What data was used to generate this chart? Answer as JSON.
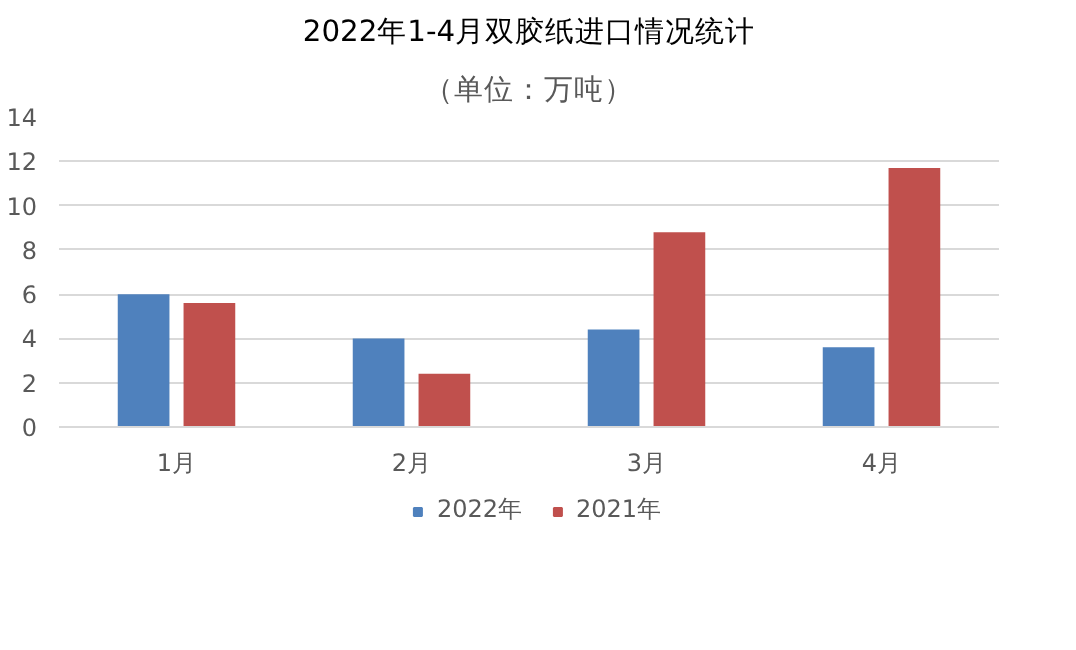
{
  "chart_data": {
    "type": "bar",
    "title": "2022年1-4月双胶纸进口情况统计",
    "subtitle": "（单位：万吨）",
    "categories": [
      "1月",
      "2月",
      "3月",
      "4月"
    ],
    "series": [
      {
        "name": "2022年",
        "color": "#4f81bd",
        "values": [
          6.0,
          4.0,
          4.4,
          3.6
        ]
      },
      {
        "name": "2021年",
        "color": "#c0504d",
        "values": [
          5.6,
          2.4,
          8.8,
          11.7
        ]
      }
    ],
    "ylim": [
      0,
      14
    ],
    "yticks": [
      0,
      2,
      4,
      6,
      8,
      10,
      12,
      14
    ],
    "grid": "y",
    "legend": "bottom"
  }
}
